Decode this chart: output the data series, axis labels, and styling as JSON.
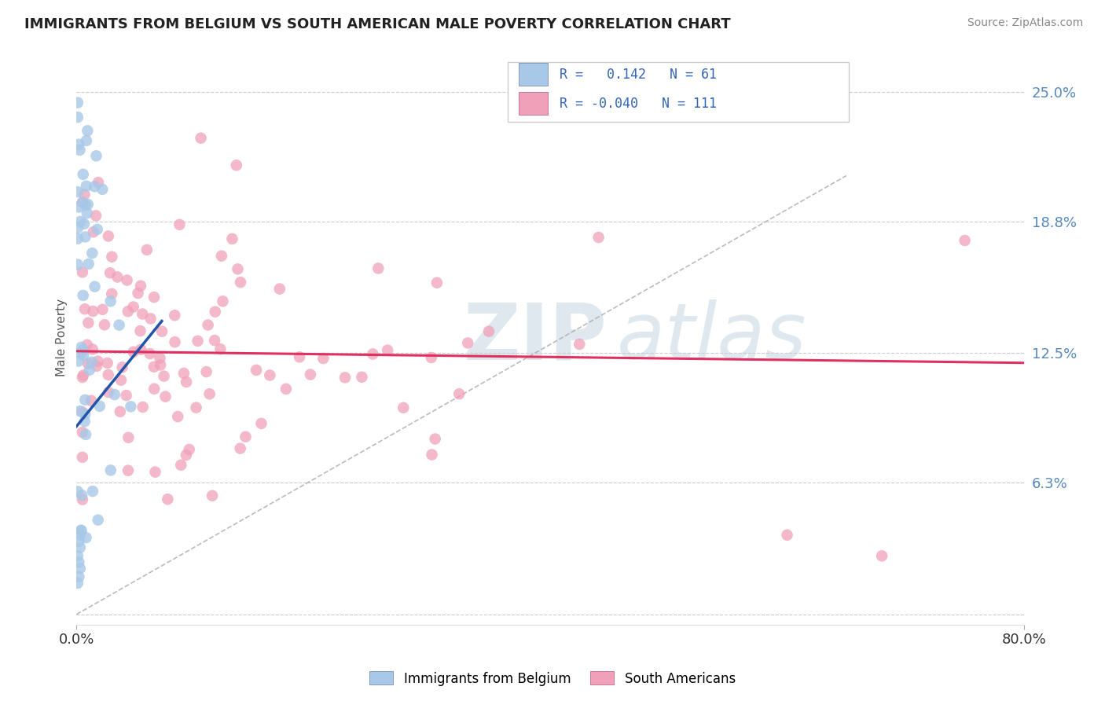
{
  "title": "IMMIGRANTS FROM BELGIUM VS SOUTH AMERICAN MALE POVERTY CORRELATION CHART",
  "source": "Source: ZipAtlas.com",
  "ylabel": "Male Poverty",
  "y_ticks": [
    0.0,
    0.063,
    0.125,
    0.188,
    0.25
  ],
  "y_tick_labels": [
    "",
    "6.3%",
    "12.5%",
    "18.8%",
    "25.0%"
  ],
  "x_lim": [
    0.0,
    0.8
  ],
  "y_lim": [
    -0.005,
    0.27
  ],
  "R_belgium": 0.142,
  "N_belgium": 61,
  "R_southam": -0.04,
  "N_southam": 111,
  "color_belgium": "#a8c8e8",
  "color_southam": "#f0a0b8",
  "trendline_belgium": "#2255aa",
  "trendline_southam": "#e03060",
  "dashed_color": "#aaaaaa",
  "watermark_zip": "ZIP",
  "watermark_atlas": "atlas",
  "watermark_color_zip": "#c8d4e0",
  "watermark_color_atlas": "#b8ccd8",
  "background_color": "#ffffff",
  "legend_label_belgium": "Immigrants from Belgium",
  "legend_label_southam": "South Americans",
  "title_color": "#222222",
  "source_color": "#888888",
  "tick_color": "#5588bb",
  "ylabel_color": "#555555"
}
